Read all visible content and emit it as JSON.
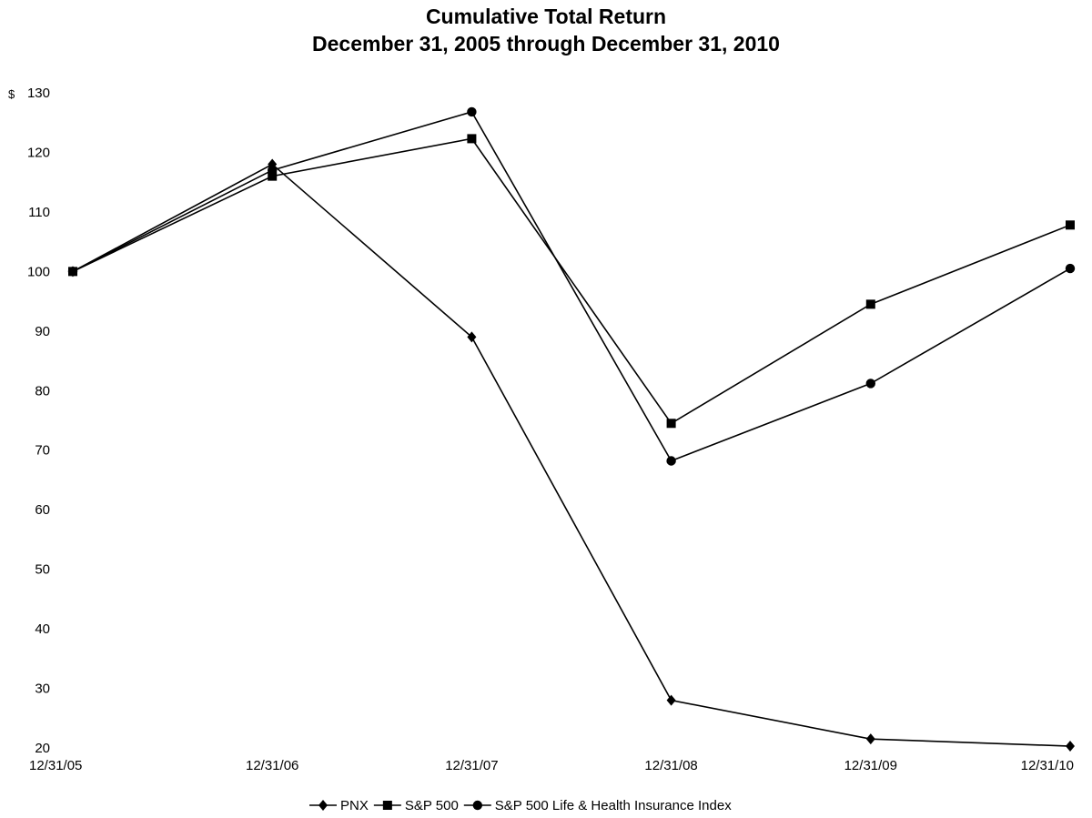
{
  "chart_data": {
    "type": "line",
    "title": "Cumulative Total Return",
    "subtitle": "December 31, 2005 through December 31, 2010",
    "ylabel": "",
    "xlabel": "",
    "y_currency_symbol": "$",
    "categories": [
      "12/31/05",
      "12/31/06",
      "12/31/07",
      "12/31/08",
      "12/31/09",
      "12/31/10"
    ],
    "yticks": [
      20,
      30,
      40,
      50,
      60,
      70,
      80,
      90,
      100,
      110,
      120,
      130
    ],
    "ylim": [
      20,
      130
    ],
    "grid": false,
    "legend_placement": "bottom",
    "series": [
      {
        "name": "PNX",
        "marker": "diamond",
        "values": [
          100,
          118,
          89,
          28,
          21.5,
          20.3
        ]
      },
      {
        "name": "S&P 500",
        "marker": "square",
        "values": [
          100,
          116,
          122.3,
          74.5,
          94.5,
          107.8
        ]
      },
      {
        "name": "S&P 500 Life & Health Insurance Index",
        "marker": "circle",
        "values": [
          100,
          117,
          126.8,
          68.2,
          81.2,
          100.5
        ]
      }
    ],
    "colors": {
      "line": "#000000",
      "marker": "#000000"
    }
  }
}
